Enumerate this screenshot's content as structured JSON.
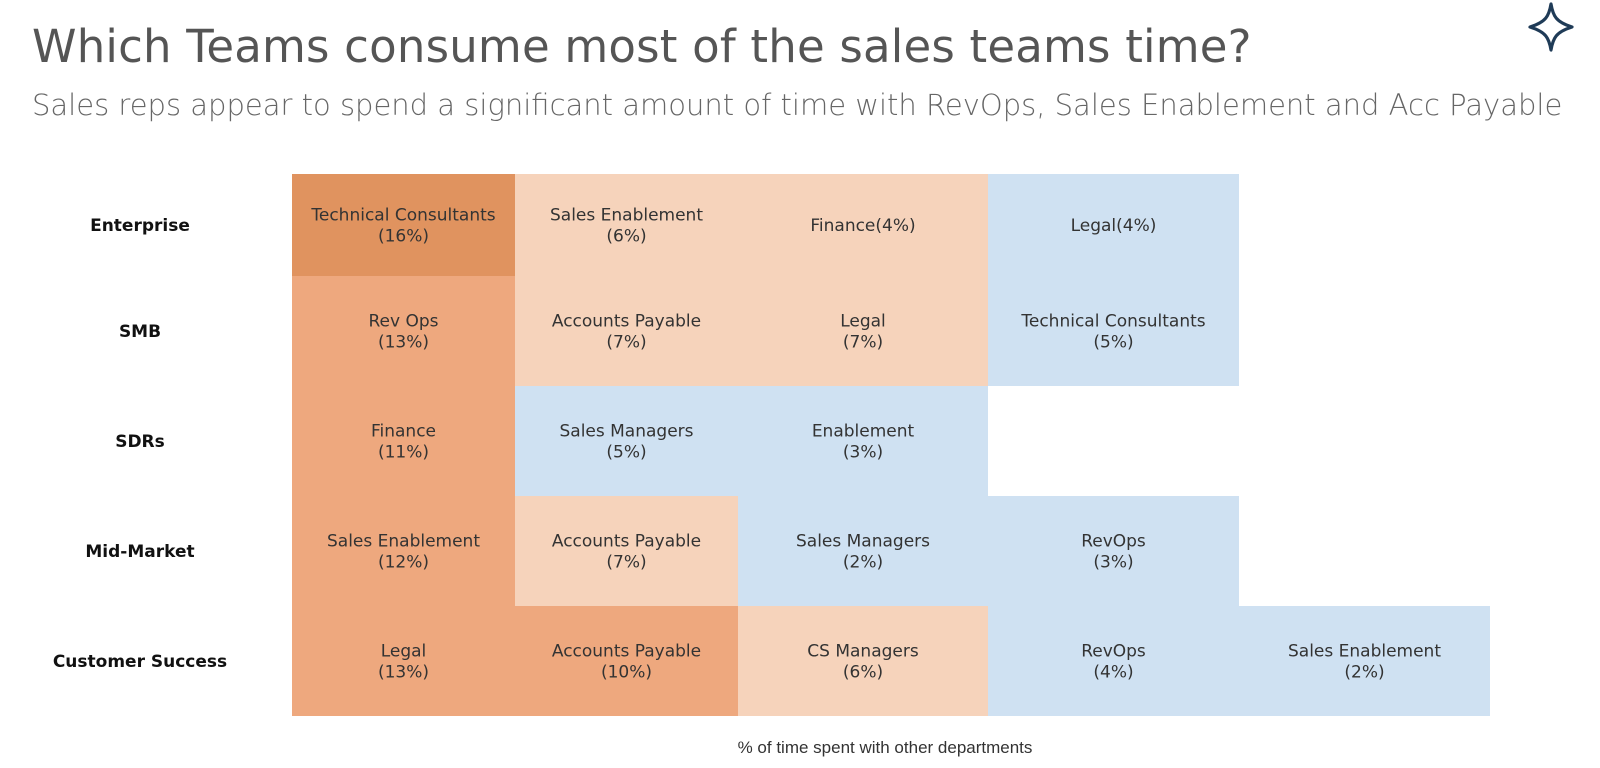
{
  "page": {
    "title": "Which Teams consume most of the sales teams time?",
    "subtitle": "Sales reps appear to spend a significant amount of time with RevOps, Sales Enablement and Acc Payable",
    "logo_icon": "four-point-star-icon"
  },
  "colors": {
    "title": "#555555",
    "dark_orange": "#E0935F",
    "mid_orange": "#EEA87E",
    "light_orange": "#F6D3BB",
    "light_blue": "#CFE1F2"
  },
  "chart_data": {
    "type": "heatmap",
    "title": "Which Teams consume most of the sales teams time?",
    "subtitle": "Sales reps appear to spend a significant amount of time with RevOps, Sales Enablement and Acc Payable",
    "xlabel": "% of time spent with other departments",
    "rows": [
      "Enterprise",
      "SMB",
      "SDRs",
      "Mid-Market",
      "Customer Success"
    ],
    "cells": [
      [
        {
          "dept": "Technical Consultants",
          "value": 16,
          "label": [
            "Technical Consultants",
            "(16%)"
          ]
        },
        {
          "dept": "Sales Enablement",
          "value": 6,
          "label": [
            "Sales Enablement",
            "(6%)"
          ]
        },
        {
          "dept": "Finance",
          "value": 4,
          "label": [
            "Finance(4%)"
          ]
        },
        {
          "dept": "Legal",
          "value": 4,
          "label": [
            "Legal(4%)"
          ]
        }
      ],
      [
        {
          "dept": "Rev Ops",
          "value": 13,
          "label": [
            "Rev Ops",
            "(13%)"
          ]
        },
        {
          "dept": "Accounts Payable",
          "value": 7,
          "label": [
            "Accounts Payable",
            "(7%)"
          ]
        },
        {
          "dept": "Legal",
          "value": 7,
          "label": [
            "Legal",
            "(7%)"
          ]
        },
        {
          "dept": "Technical Consultants",
          "value": 5,
          "label": [
            "Technical Consultants",
            "(5%)"
          ]
        }
      ],
      [
        {
          "dept": "Finance",
          "value": 11,
          "label": [
            "Finance",
            "(11%)"
          ]
        },
        {
          "dept": "Sales Managers",
          "value": 5,
          "label": [
            "Sales Managers",
            "(5%)"
          ]
        },
        {
          "dept": "Enablement",
          "value": 3,
          "label": [
            "Enablement",
            "(3%)"
          ]
        }
      ],
      [
        {
          "dept": "Sales Enablement",
          "value": 12,
          "label": [
            "Sales Enablement",
            "(12%)"
          ]
        },
        {
          "dept": "Accounts Payable",
          "value": 7,
          "label": [
            "Accounts Payable",
            "(7%)"
          ]
        },
        {
          "dept": "Sales Managers",
          "value": 2,
          "label": [
            "Sales Managers",
            "(2%)"
          ]
        },
        {
          "dept": "RevOps",
          "value": 3,
          "label": [
            "RevOps",
            "(3%)"
          ]
        }
      ],
      [
        {
          "dept": "Legal",
          "value": 13,
          "label": [
            "Legal",
            "(13%)"
          ]
        },
        {
          "dept": "Accounts Payable",
          "value": 10,
          "label": [
            "Accounts Payable",
            "(10%)"
          ]
        },
        {
          "dept": "CS Managers",
          "value": 6,
          "label": [
            "CS Managers",
            "(6%)"
          ]
        },
        {
          "dept": "RevOps",
          "value": 4,
          "label": [
            "RevOps",
            "(4%)"
          ]
        },
        {
          "dept": "Sales Enablement",
          "value": 2,
          "label": [
            "Sales Enablement",
            "(2%)"
          ]
        }
      ]
    ],
    "color_bands": [
      {
        "min": 14,
        "color": "#E0935F"
      },
      {
        "min": 8,
        "color": "#EEA87E"
      },
      {
        "min": 5.5,
        "color": "#F6D3BB"
      },
      {
        "min": 0,
        "color": "#CFE1F2"
      }
    ],
    "band_exceptions": [
      {
        "row": 1,
        "col": 3,
        "color": "#CFE1F2"
      },
      {
        "row": 1,
        "col": 1,
        "color": "#F6D3BB"
      },
      {
        "row": 1,
        "col": 2,
        "color": "#F6D3BB"
      },
      {
        "row": 0,
        "col": 2,
        "color": "#F6D3BB"
      }
    ]
  }
}
